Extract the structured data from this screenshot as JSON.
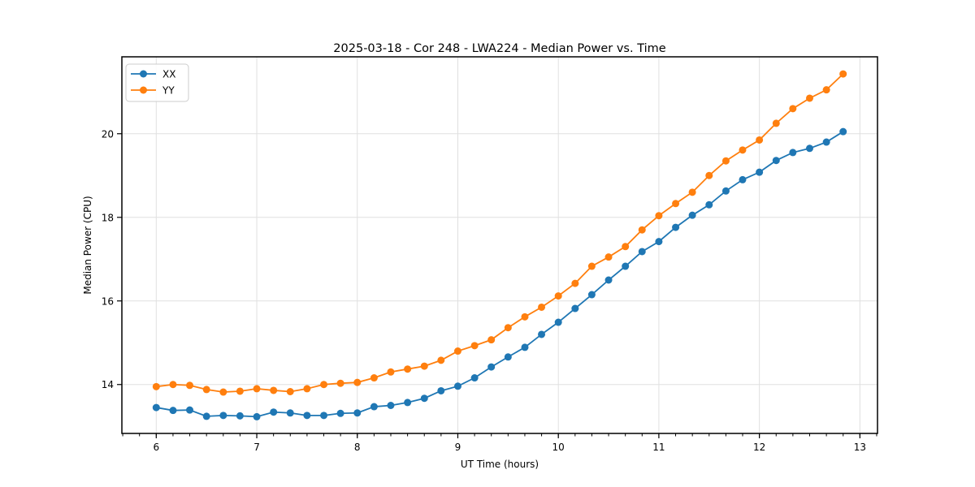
{
  "figure": {
    "background": "#ffffff",
    "plot_border_color": "#000000",
    "grid_color": "#e0e0e0"
  },
  "chart_data": {
    "type": "line",
    "title": "2025-03-18 - Cor 248 - LWA224 - Median Power vs. Time",
    "xlabel": "UT Time (hours)",
    "ylabel": "Median Power (CPU)",
    "xlim": [
      5.658,
      13.175
    ],
    "ylim": [
      12.83,
      21.84
    ],
    "x_major_ticks": [
      6,
      7,
      8,
      9,
      10,
      11,
      12,
      13
    ],
    "x_minor_tick_step": 0.166667,
    "y_major_ticks": [
      14,
      16,
      18,
      20
    ],
    "grid": "major ticks only, light gray, both axes",
    "legend_position": "upper left",
    "marker": "filled circle",
    "x": [
      6.0,
      6.167,
      6.333,
      6.5,
      6.667,
      6.833,
      7.0,
      7.167,
      7.333,
      7.5,
      7.667,
      7.833,
      8.0,
      8.167,
      8.333,
      8.5,
      8.667,
      8.833,
      9.0,
      9.167,
      9.333,
      9.5,
      9.667,
      9.833,
      10.0,
      10.167,
      10.333,
      10.5,
      10.667,
      10.833,
      11.0,
      11.167,
      11.333,
      11.5,
      11.667,
      11.833,
      12.0,
      12.167,
      12.333,
      12.5,
      12.667,
      12.833
    ],
    "series": [
      {
        "name": "XX",
        "color": "#1f77b4",
        "values": [
          13.45,
          13.38,
          13.39,
          13.24,
          13.26,
          13.25,
          13.23,
          13.34,
          13.32,
          13.26,
          13.26,
          13.31,
          13.32,
          13.47,
          13.5,
          13.57,
          13.67,
          13.85,
          13.96,
          14.16,
          14.42,
          14.66,
          14.89,
          15.2,
          15.49,
          15.82,
          16.15,
          16.5,
          16.83,
          17.18,
          17.42,
          17.76,
          18.05,
          18.3,
          18.63,
          18.9,
          19.08,
          19.36,
          19.55,
          19.65,
          19.8,
          20.05
        ]
      },
      {
        "name": "YY",
        "color": "#ff7f0e",
        "values": [
          13.95,
          14.0,
          13.98,
          13.88,
          13.82,
          13.84,
          13.9,
          13.86,
          13.83,
          13.9,
          14.0,
          14.03,
          14.05,
          14.16,
          14.3,
          14.37,
          14.44,
          14.58,
          14.8,
          14.93,
          15.07,
          15.36,
          15.62,
          15.85,
          16.12,
          16.42,
          16.83,
          17.05,
          17.3,
          17.7,
          18.04,
          18.33,
          18.6,
          19.0,
          19.35,
          19.61,
          19.85,
          20.25,
          20.6,
          20.85,
          21.05,
          21.43
        ]
      }
    ]
  }
}
